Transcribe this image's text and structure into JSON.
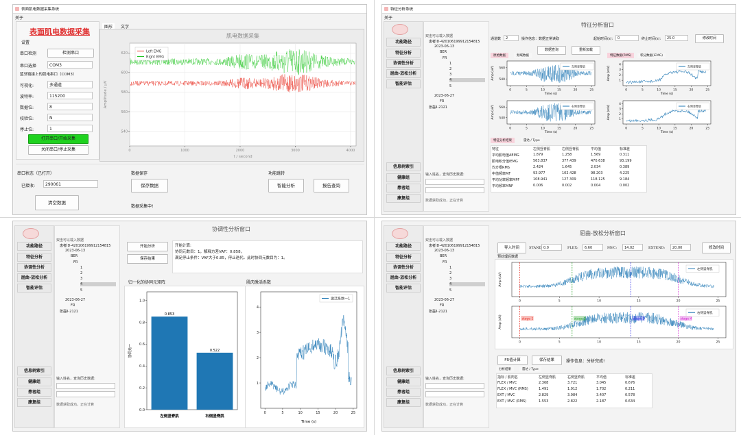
{
  "shared": {
    "menu": "关于",
    "sidebar": {
      "path_title": "功能路径",
      "paths": [
        "特征分析",
        "协调性分析",
        "屈曲-放松分析",
        "智能评估"
      ],
      "tree_title": "信息树索引",
      "groups": [
        "健康组",
        "患者组",
        "康复组"
      ]
    },
    "tree": {
      "hint": "双击可以载入数据",
      "items": [
        "患者ID-420106199912154815",
        "2023-06-13",
        "BER",
        "FR",
        "1",
        "2",
        "3",
        "4",
        "5",
        "2023-06-27",
        "FR",
        "张磊Ⅱ-2121"
      ]
    },
    "search": "输入姓名，查询历史数据:",
    "status": "数据获取成功，正在计算"
  },
  "collect": {
    "title": "表面肌电数据采集系统",
    "heading": "表面肌电数据采集",
    "tabs": [
      "图形",
      "文字"
    ],
    "settings": "设置",
    "fields": [
      {
        "label": "串口检测",
        "value": "检测串口"
      },
      {
        "label": "串口选择",
        "value": "COM3"
      },
      {
        "label": "可视化:",
        "value": "多通道"
      },
      {
        "label": "波特率:",
        "value": "115200"
      },
      {
        "label": "数据位:",
        "value": "8"
      },
      {
        "label": "校验位:",
        "value": "N"
      },
      {
        "label": "停止位:",
        "value": "1"
      }
    ],
    "bt_note": "蓝牙链接上的肌电串口（COM3）",
    "open": "打开串口/开始采集",
    "close": "关闭串口/停止采集",
    "chart": {
      "title": "肌电数据采集",
      "series": [
        {
          "name": "Left EMG",
          "color": "#e8281c"
        },
        {
          "name": "Right EMG",
          "color": "#22c422"
        }
      ],
      "xlabel": "t / second",
      "ylabel": "Amplitude / μV",
      "xlim": [
        0,
        4100
      ],
      "xticks": [
        0,
        1000,
        2000,
        3000,
        4000
      ],
      "ylim": [
        525,
        630
      ],
      "yticks": [
        540,
        560,
        580,
        600,
        620
      ]
    },
    "status": "串口状态（已打开）",
    "received_label": "已接收:",
    "received": "290061",
    "clear": "清空数据",
    "save_title": "数据保存",
    "save": "保存数据",
    "saving": "数据采集中!",
    "jump_title": "功能跳转",
    "smart": "智能分析",
    "report": "报告查询"
  },
  "feature": {
    "title": "特征分析系统",
    "header": "特征分析窗口",
    "channels_label": "通道数",
    "channels": "2",
    "info": "操作信息：数据正常读取",
    "start_label": "起始时间(s):",
    "start": "0",
    "end_label": "终止时间(s):",
    "end": "25.0",
    "modify": "修改时间",
    "query": "数据查询",
    "reload": "重新加载",
    "left_tabs": [
      "原始数据",
      "频域数据"
    ],
    "right_tabs": [
      "特征数据(RMS)",
      "积分数据(iEMG)"
    ],
    "legend": [
      "左侧竖脊肌",
      "右侧竖脊肌"
    ],
    "color": "#1f77b4",
    "xlabel": "Time (s)",
    "xlim": [
      -1,
      26
    ],
    "xticks": [
      0,
      5,
      10,
      15,
      20,
      25
    ],
    "left_ylabel": "Amp (uV)",
    "left_ylim": [
      528,
      572
    ],
    "left_yticks": [
      540,
      560
    ],
    "right_ylabel": "Amp (mV)",
    "right_ylim": [
      0,
      4.6
    ],
    "right_yticks": [
      1,
      2,
      3,
      4
    ],
    "table_tabs": [
      "特征分析结果",
      "雷达 / Type"
    ],
    "table": {
      "header": [
        "特征",
        "左侧竖脊肌",
        "右侧竖脊肌",
        "平均值",
        "标准差"
      ],
      "rows": [
        [
          "平均肌电值AEMG",
          1.879,
          1.258,
          1.569,
          0.311
        ],
        [
          "肌电积分值iEMG",
          563.837,
          377.439,
          470.638,
          93.199
        ],
        [
          "均方根RMS",
          2.424,
          1.645,
          2.034,
          0.389
        ],
        [
          "中值频率MF",
          93.977,
          102.428,
          98.203,
          4.225
        ],
        [
          "平均功率频率MPF",
          108.941,
          127.309,
          118.125,
          9.184
        ],
        [
          "平均频率MNF",
          0.006,
          0.002,
          0.004,
          0.002
        ]
      ]
    }
  },
  "synergy": {
    "header": "协调性分析窗口",
    "start": "开始分析",
    "save": "保存结果",
    "log": [
      "开始计算:",
      "协同元数目：1，解释方差VAF：0.858，",
      "满足停止条件：VAF大于0.85，停止迭代。此时协同元数目为：1。"
    ],
    "bar": {
      "type": "bar",
      "title": "归一化的协同元矩阵",
      "ylabel": "协同元一",
      "categories": [
        "左侧竖脊肌",
        "右侧竖脊肌"
      ],
      "values": [
        0.853,
        0.522
      ],
      "color": "#1f77b4",
      "ylim": [
        0,
        1.08
      ],
      "yticks": [
        {
          "value": 0,
          "label": "0.0"
        },
        0.2,
        0.4,
        0.6,
        0.8,
        {
          "value": 1,
          "label": "1.0"
        }
      ]
    },
    "line": {
      "type": "line",
      "title": "肌肉激活系数",
      "legend": "激活系数一1",
      "color": "#1f77b4",
      "xlabel": "Time (s)",
      "xlim": [
        -1.2,
        26
      ],
      "xticks": [
        0,
        5,
        10,
        15,
        20,
        25
      ],
      "ylim": [
        0,
        4.6
      ],
      "yticks": [
        1,
        2,
        3,
        4
      ]
    }
  },
  "flexion": {
    "header": "屈曲-放松分析窗口",
    "import": "导入时间",
    "fields": [
      {
        "label": "STAND:",
        "value": {
          "value": 0,
          "label": "0.0"
        }
      },
      {
        "label": "FLEX:",
        "value": {
          "value": 6.6,
          "label": "6.60"
        }
      },
      {
        "label": "MVC:",
        "value": {
          "value": 14.02,
          "label": "14.02"
        }
      },
      {
        "label": "EXTEND:",
        "value": {
          "value": 20,
          "label": "20.00"
        }
      }
    ],
    "modify": "修改时间",
    "chart_title": "预处理后数据",
    "legend": [
      "左侧竖脊肌",
      "右侧竖脊肌"
    ],
    "color": "#1f77b4",
    "ylabel": "Amp (uV)",
    "xlim": [
      -1,
      26
    ],
    "xticks": [
      0,
      5,
      10,
      15,
      20,
      25
    ],
    "stages": [
      "stage 1",
      "stage 2",
      "stage 3",
      "stage 4"
    ],
    "stage_colors": [
      "#e8281c",
      "#22a022",
      "#2a2ae8",
      "#d020d0"
    ],
    "fr": "FR值计算",
    "save": "保存结果",
    "info": "操作信息：分析完成!",
    "table_tabs": [
      "分析结果",
      "雷达 / Type"
    ],
    "table": {
      "header": [
        "指标 / 肌肉名",
        "左侧竖脊肌",
        "右侧竖脊肌",
        "平均值",
        "标准差"
      ],
      "rows": [
        [
          "FLEX / MVC",
          2.368,
          3.721,
          3.045,
          0.676
        ],
        [
          "FLEX / MVC (RMS)",
          1.491,
          1.912,
          1.702,
          0.211
        ],
        [
          "EXT / MVC",
          2.829,
          3.984,
          3.407,
          0.578
        ],
        [
          "EXT / MVC (RMS)",
          1.553,
          2.822,
          2.187,
          0.634
        ]
      ]
    }
  }
}
